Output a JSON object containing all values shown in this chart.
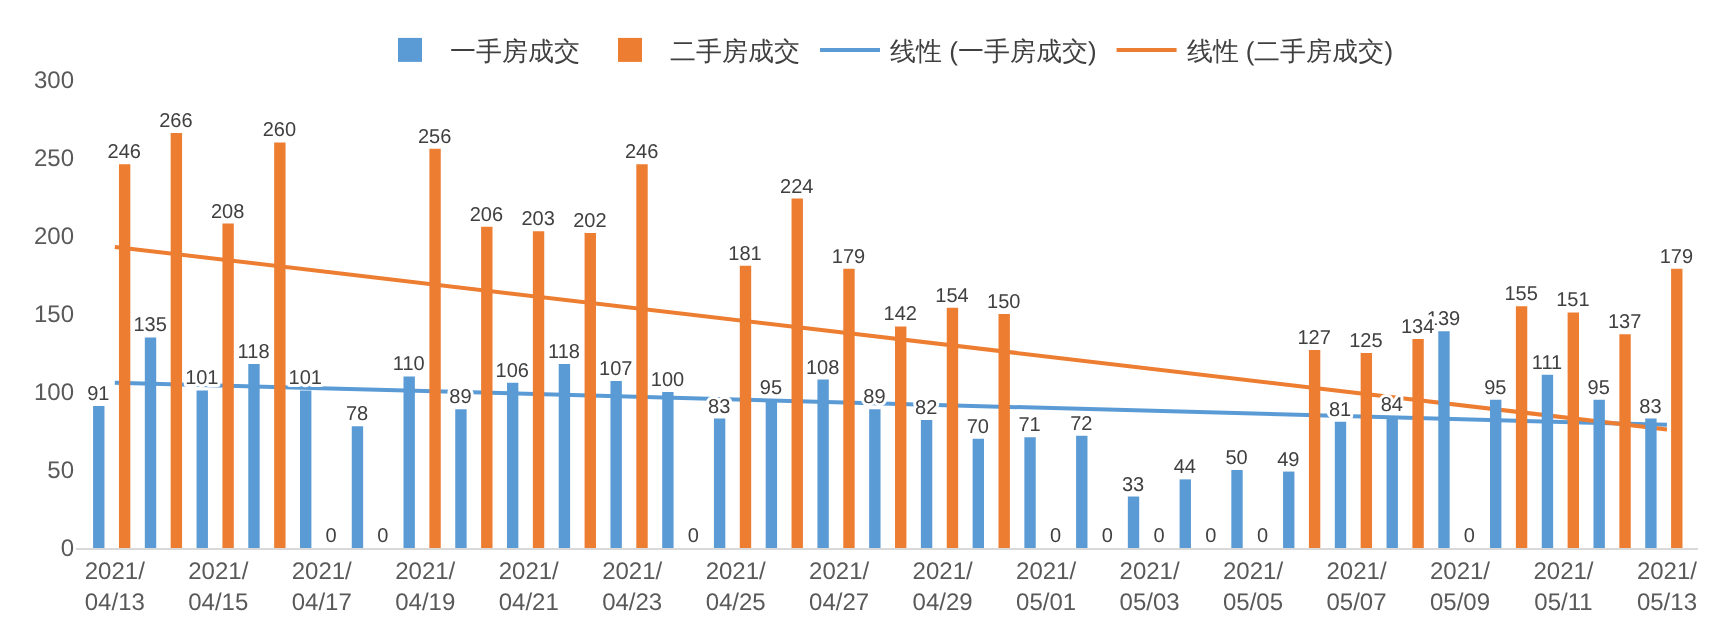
{
  "chart_data": {
    "type": "bar",
    "categories": [
      "2021/\n04/13",
      null,
      "2021/\n04/15",
      null,
      "2021/\n04/17",
      null,
      "2021/\n04/19",
      null,
      "2021/\n04/21",
      null,
      "2021/\n04/23",
      null,
      "2021/\n04/25",
      null,
      "2021/\n04/27",
      null,
      "2021/\n04/29",
      null,
      "2021/\n05/01",
      null,
      "2021/\n05/03",
      null,
      "2021/\n05/05",
      null,
      "2021/\n05/07",
      null,
      "2021/\n05/09",
      null,
      "2021/\n05/11",
      null,
      "2021/\n05/13"
    ],
    "series": [
      {
        "name": "一手房成交",
        "color": "#5b9bd5",
        "values": [
          91,
          135,
          101,
          118,
          101,
          78,
          110,
          89,
          106,
          118,
          107,
          100,
          83,
          95,
          108,
          89,
          82,
          70,
          71,
          72,
          33,
          44,
          50,
          49,
          81,
          84,
          139,
          95,
          111,
          95,
          83
        ]
      },
      {
        "name": "二手房成交",
        "color": "#ed7d31",
        "values": [
          246,
          266,
          208,
          260,
          0,
          0,
          256,
          206,
          203,
          202,
          246,
          0,
          181,
          224,
          179,
          142,
          154,
          150,
          0,
          0,
          0,
          0,
          0,
          127,
          125,
          134,
          0,
          155,
          151,
          137,
          179
        ]
      },
      {
        "name": "线性 (一手房成交)",
        "type": "line",
        "color": "#5b9bd5",
        "x": [
          "2021/\n04/13",
          "2021/\n05/13"
        ],
        "values": [
          106,
          79
        ],
        "value_labels": [
          null,
          null
        ]
      },
      {
        "name": "线性 (二手房成交)",
        "type": "line",
        "color": "#ed7d31",
        "x": [
          "2021/\n04/13",
          "2021/\n05/13"
        ],
        "values": [
          193,
          76
        ],
        "value_labels": [
          null,
          null
        ]
      }
    ],
    "ylim": [
      0,
      300
    ],
    "yticks": [
      0,
      50,
      100,
      150,
      200,
      250,
      300
    ],
    "data_labels": true,
    "legend": "top",
    "grid": false,
    "marker": "none",
    "line_style": "solid"
  }
}
